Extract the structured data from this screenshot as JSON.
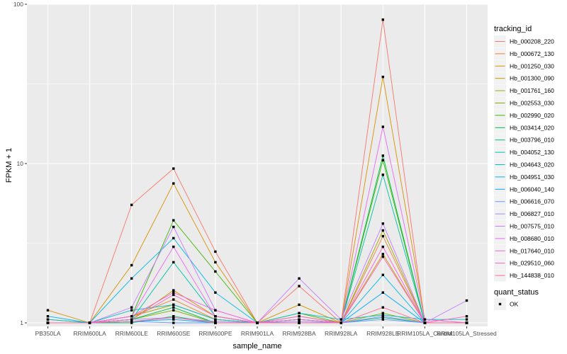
{
  "chart_data": {
    "type": "line",
    "title": "",
    "xlabel": "sample_name",
    "ylabel": "FPKM + 1",
    "y_scale": "log10",
    "ylim": [
      0.95,
      100
    ],
    "y_ticks": [
      1,
      10,
      100
    ],
    "y_tick_labels": [
      "1",
      "10",
      "100"
    ],
    "grid": true,
    "legend_position": "right",
    "categories": [
      "PB350LA",
      "RRIM600LA",
      "RRIM600LE",
      "RRIM600SE",
      "RRIM600PE",
      "RRIM901LA",
      "RRIM928BA",
      "RRIM928LA",
      "RRIM928LE",
      "RRIM105LA_Control",
      "RRIM105LA_Stressed"
    ],
    "series": [
      {
        "name": "Hb_000208_220",
        "color": "#F8766D",
        "values": [
          1.0,
          1.0,
          5.5,
          9.3,
          2.8,
          1.0,
          1.7,
          1.0,
          80,
          1.0,
          1.0
        ]
      },
      {
        "name": "Hb_000672_130",
        "color": "#EA8331",
        "values": [
          1.05,
          1.0,
          1.1,
          1.4,
          1.05,
          1.0,
          1.05,
          1.0,
          3.5,
          1.0,
          1.0
        ]
      },
      {
        "name": "Hb_001250_030",
        "color": "#D89000",
        "values": [
          1.2,
          1.0,
          2.3,
          7.5,
          2.4,
          1.0,
          1.3,
          1.0,
          35,
          1.05,
          1.0
        ]
      },
      {
        "name": "Hb_001300_090",
        "color": "#C09B00",
        "values": [
          1.0,
          1.0,
          1.05,
          1.6,
          1.1,
          1.0,
          1.1,
          1.0,
          2.7,
          1.0,
          1.0
        ]
      },
      {
        "name": "Hb_001761_160",
        "color": "#A3A500",
        "values": [
          1.0,
          1.0,
          1.1,
          1.3,
          1.05,
          1.0,
          1.05,
          1.0,
          3.8,
          1.0,
          1.0
        ]
      },
      {
        "name": "Hb_002553_030",
        "color": "#7CAE00",
        "values": [
          1.0,
          1.0,
          1.05,
          1.2,
          1.0,
          1.0,
          1.0,
          1.0,
          1.15,
          1.0,
          1.0
        ]
      },
      {
        "name": "Hb_002990_020",
        "color": "#39B600",
        "values": [
          1.0,
          1.0,
          1.1,
          4.4,
          2.1,
          1.0,
          1.15,
          1.0,
          10.5,
          1.0,
          1.0
        ]
      },
      {
        "name": "Hb_003414_020",
        "color": "#00BB4E",
        "values": [
          1.0,
          1.0,
          1.05,
          1.25,
          1.0,
          1.0,
          1.0,
          1.0,
          11.2,
          1.0,
          1.0
        ]
      },
      {
        "name": "Hb_003796_010",
        "color": "#00BF7D",
        "values": [
          1.0,
          1.0,
          1.0,
          1.1,
          1.0,
          1.0,
          1.0,
          1.0,
          1.08,
          1.0,
          1.0
        ]
      },
      {
        "name": "Hb_004052_130",
        "color": "#00C1A3",
        "values": [
          1.0,
          1.0,
          1.05,
          2.4,
          1.1,
          1.0,
          1.05,
          1.0,
          8.5,
          1.0,
          1.0
        ]
      },
      {
        "name": "Hb_004643_020",
        "color": "#00BFC4",
        "values": [
          1.05,
          1.0,
          1.2,
          1.3,
          1.05,
          1.0,
          1.15,
          1.05,
          1.12,
          1.05,
          1.05
        ]
      },
      {
        "name": "Hb_004951_030",
        "color": "#00B8E7",
        "values": [
          1.1,
          1.0,
          1.9,
          3.4,
          1.55,
          1.0,
          1.05,
          1.0,
          2.0,
          1.0,
          1.0
        ]
      },
      {
        "name": "Hb_006040_140",
        "color": "#00A9FF",
        "values": [
          1.0,
          1.0,
          1.02,
          1.05,
          1.0,
          1.0,
          1.0,
          1.0,
          1.55,
          1.0,
          1.0
        ]
      },
      {
        "name": "Hb_006616_070",
        "color": "#619CFF",
        "values": [
          1.0,
          1.0,
          1.02,
          1.0,
          1.0,
          1.0,
          1.0,
          1.0,
          1.05,
          1.0,
          1.0
        ]
      },
      {
        "name": "Hb_006827_010",
        "color": "#9F8CFF",
        "values": [
          1.0,
          1.0,
          1.05,
          1.08,
          1.02,
          1.0,
          1.02,
          1.0,
          1.1,
          1.0,
          1.0
        ]
      },
      {
        "name": "Hb_007575_010",
        "color": "#C77CFF",
        "values": [
          1.0,
          1.0,
          1.25,
          4.0,
          1.2,
          1.0,
          1.9,
          1.05,
          4.2,
          1.0,
          1.38
        ]
      },
      {
        "name": "Hb_008680_010",
        "color": "#E76BF3",
        "values": [
          1.0,
          1.0,
          1.1,
          3.0,
          1.1,
          1.0,
          1.0,
          1.0,
          17,
          1.05,
          1.0
        ]
      },
      {
        "name": "Hb_017640_010",
        "color": "#FA62DB",
        "values": [
          1.0,
          1.0,
          1.1,
          1.55,
          1.2,
          1.0,
          1.05,
          1.0,
          3.0,
          1.0,
          1.0
        ]
      },
      {
        "name": "Hb_029510_060",
        "color": "#FF62BC",
        "values": [
          1.0,
          1.0,
          1.05,
          1.5,
          1.1,
          1.0,
          1.1,
          1.0,
          2.6,
          1.0,
          1.1
        ]
      },
      {
        "name": "Hb_144838_010",
        "color": "#FF6C91",
        "values": [
          1.0,
          1.0,
          1.02,
          1.08,
          1.0,
          1.0,
          1.0,
          1.0,
          1.25,
          1.0,
          1.0
        ]
      }
    ],
    "legend": {
      "series_title": "tracking_id",
      "shape_title": "quant_status",
      "shape_label": "OK"
    },
    "colors": {
      "panel": "#EBEBEB",
      "grid_major": "#FFFFFF",
      "point": "#000000"
    }
  }
}
